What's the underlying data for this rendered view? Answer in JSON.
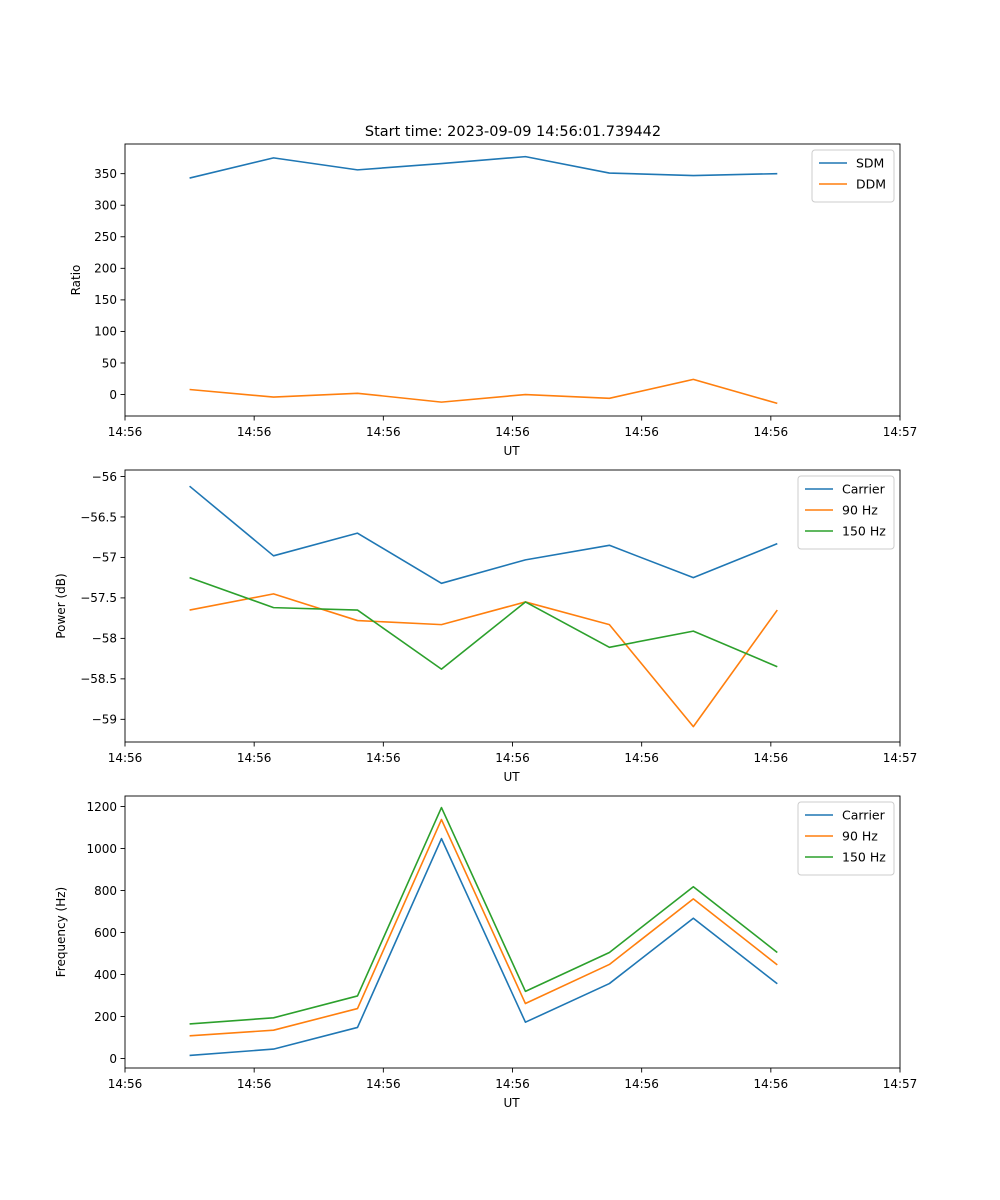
{
  "chart_data": [
    {
      "type": "line",
      "title": "Start time: 2023-09-09 14:56:01.739442",
      "xlabel": "UT",
      "ylabel": "Ratio",
      "xlim": [
        0,
        12
      ],
      "ylim": [
        -34,
        397
      ],
      "yticks": [
        0,
        50,
        100,
        150,
        200,
        250,
        300,
        350
      ],
      "xticks": [
        0,
        2,
        4,
        6,
        8,
        10,
        12
      ],
      "xtick_labels": [
        "14:56",
        "14:56",
        "14:56",
        "14:56",
        "14:56",
        "14:56",
        "14:57"
      ],
      "x": [
        1,
        2.3,
        3.6,
        4.9,
        6.2,
        7.5,
        8.8,
        10.1
      ],
      "series": [
        {
          "name": "SDM",
          "color": "#1f77b4",
          "values": [
            343,
            375,
            356,
            366,
            377,
            351,
            347,
            350
          ]
        },
        {
          "name": "DDM",
          "color": "#ff7f0e",
          "values": [
            8,
            -4,
            2,
            -12,
            0,
            -6,
            24,
            -14
          ]
        }
      ]
    },
    {
      "type": "line",
      "title": "",
      "xlabel": "UT",
      "ylabel": "Power (dB)",
      "xlim": [
        0,
        12
      ],
      "ylim": [
        -59.28,
        -55.92
      ],
      "yticks": [
        -59.0,
        -58.5,
        -58.0,
        -57.5,
        -57.0,
        -56.5,
        -56.0
      ],
      "xticks": [
        0,
        2,
        4,
        6,
        8,
        10,
        12
      ],
      "xtick_labels": [
        "14:56",
        "14:56",
        "14:56",
        "14:56",
        "14:56",
        "14:56",
        "14:57"
      ],
      "x": [
        1,
        2.3,
        3.6,
        4.9,
        6.2,
        7.5,
        8.8,
        10.1
      ],
      "series": [
        {
          "name": "Carrier",
          "color": "#1f77b4",
          "values": [
            -56.12,
            -56.98,
            -56.7,
            -57.32,
            -57.03,
            -56.85,
            -57.25,
            -56.83
          ]
        },
        {
          "name": "90 Hz",
          "color": "#ff7f0e",
          "values": [
            -57.65,
            -57.45,
            -57.78,
            -57.83,
            -57.55,
            -57.83,
            -59.09,
            -57.65
          ]
        },
        {
          "name": "150 Hz",
          "color": "#2ca02c",
          "values": [
            -57.25,
            -57.62,
            -57.65,
            -58.38,
            -57.55,
            -58.11,
            -57.91,
            -58.35
          ]
        }
      ]
    },
    {
      "type": "line",
      "title": "",
      "xlabel": "UT",
      "ylabel": "Frequency (Hz)",
      "xlim": [
        0,
        12
      ],
      "ylim": [
        -45,
        1250
      ],
      "yticks": [
        0,
        200,
        400,
        600,
        800,
        1000,
        1200
      ],
      "xticks": [
        0,
        2,
        4,
        6,
        8,
        10,
        12
      ],
      "xtick_labels": [
        "14:56",
        "14:56",
        "14:56",
        "14:56",
        "14:56",
        "14:56",
        "14:57"
      ],
      "x": [
        1,
        2.3,
        3.6,
        4.9,
        6.2,
        7.5,
        8.8,
        10.1
      ],
      "series": [
        {
          "name": "Carrier",
          "color": "#1f77b4",
          "values": [
            15,
            45,
            148,
            1047,
            173,
            357,
            668,
            356
          ]
        },
        {
          "name": "90 Hz",
          "color": "#ff7f0e",
          "values": [
            108,
            135,
            238,
            1138,
            262,
            448,
            760,
            446
          ]
        },
        {
          "name": "150 Hz",
          "color": "#2ca02c",
          "values": [
            165,
            194,
            298,
            1195,
            320,
            505,
            818,
            505
          ]
        }
      ]
    }
  ]
}
